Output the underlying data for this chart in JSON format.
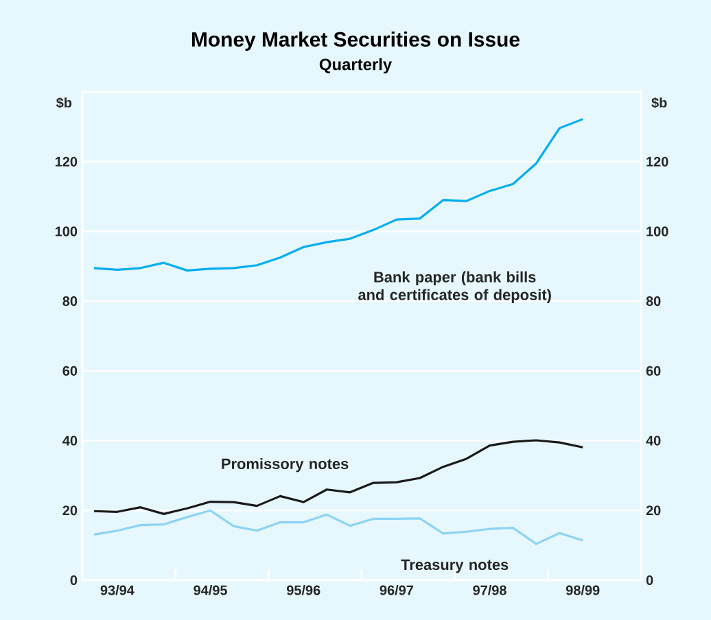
{
  "chart_data": {
    "type": "line",
    "title": "Money Market Securities on Issue",
    "subtitle": "Quarterly",
    "ylabel": "$b",
    "y2label": "$b",
    "categories": [
      null,
      "93/94",
      null,
      null,
      null,
      "94/95",
      null,
      null,
      null,
      "95/96",
      null,
      null,
      null,
      "96/97",
      null,
      null,
      null,
      "97/98",
      null,
      null,
      null,
      "98/99"
    ],
    "ylim": [
      0,
      140
    ],
    "yticks": [
      0,
      20,
      40,
      60,
      80,
      100,
      120
    ],
    "y2lim": [
      0,
      140
    ],
    "y2ticks": [
      0,
      20,
      40,
      60,
      80,
      100,
      120
    ],
    "grid": "y",
    "marker": "none",
    "line_style": "solid",
    "series": [
      {
        "name": "Bank paper (bank bills and certificates of deposit)",
        "color": "#00aeef",
        "values": [
          89.5,
          89,
          89.5,
          91,
          88.8,
          89.3,
          89.5,
          90.3,
          92.5,
          95.5,
          96.9,
          97.9,
          100.4,
          103.4,
          103.7,
          109,
          108.7,
          111.6,
          113.6,
          119.5,
          129.6,
          132.2
        ]
      },
      {
        "name": "Promissory notes",
        "color": "#1a1a1a",
        "values": [
          19.8,
          19.6,
          20.9,
          19,
          20.6,
          22.5,
          22.4,
          21.3,
          24.1,
          22.4,
          26,
          25.2,
          27.9,
          28.1,
          29.3,
          32.5,
          34.8,
          38.6,
          39.7,
          40.1,
          39.5,
          38.1
        ]
      },
      {
        "name": "Treasury notes",
        "color": "#8dd3f5",
        "values": [
          13.1,
          14.2,
          15.8,
          16,
          18.1,
          20,
          15.5,
          14.2,
          16.6,
          16.6,
          18.8,
          15.6,
          17.6,
          17.6,
          17.7,
          13.4,
          13.9,
          14.7,
          15,
          10.4,
          13.5,
          11.4
        ]
      }
    ]
  }
}
